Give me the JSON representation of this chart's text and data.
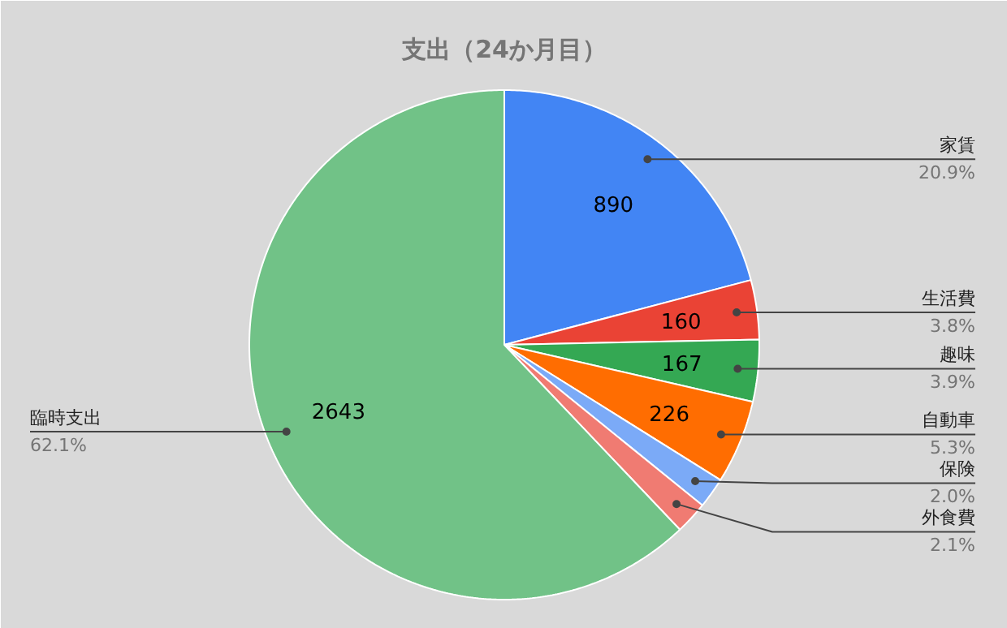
{
  "chart_data": {
    "type": "pie",
    "title": "支出（24か月目）",
    "categories": [
      "家賃",
      "生活費",
      "趣味",
      "自動車",
      "保険",
      "外食費",
      "臨時支出"
    ],
    "values": [
      890,
      160,
      167,
      226,
      83,
      88,
      2643
    ],
    "colors": [
      "#4285f4",
      "#ea4335",
      "#34a853",
      "#ff6d01",
      "#7baaf7",
      "#f07b72",
      "#71c287"
    ],
    "value_labels": [
      "890",
      "160",
      "167",
      "226",
      null,
      null,
      "2643"
    ],
    "annotations": [
      "20.9%",
      "3.8%",
      "3.9%",
      "5.3%",
      "2.0%",
      "2.1%",
      "62.1%"
    ]
  }
}
